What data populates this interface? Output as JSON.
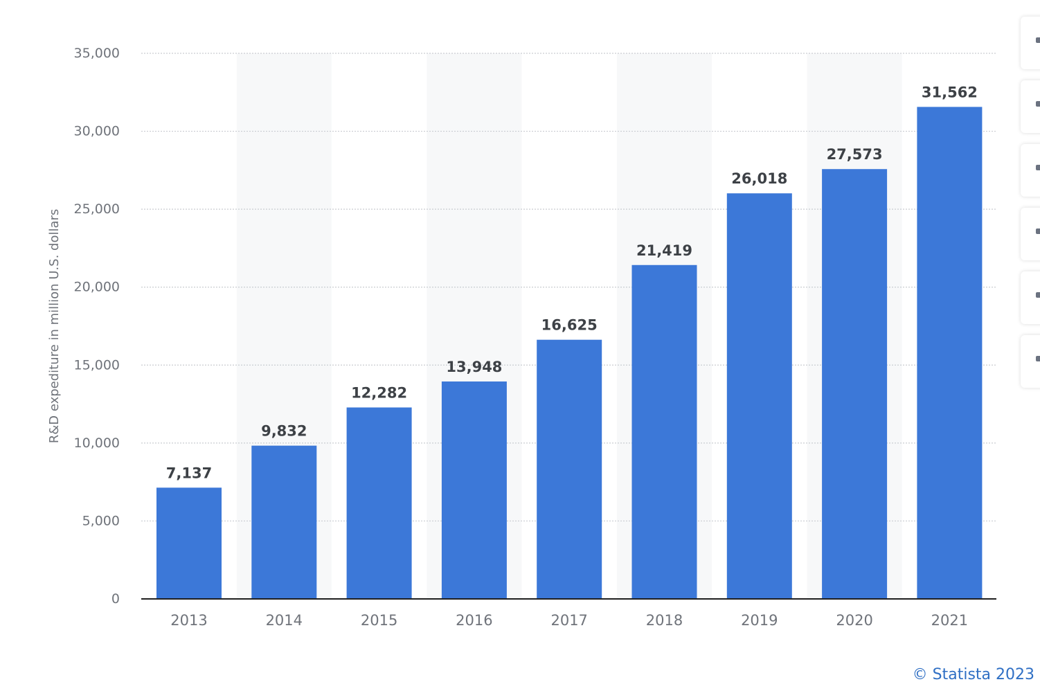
{
  "chart_data": {
    "type": "bar",
    "title": "",
    "xlabel": "",
    "ylabel": "R&D expediture in million U.S. dollars",
    "categories": [
      "2013",
      "2014",
      "2015",
      "2016",
      "2017",
      "2018",
      "2019",
      "2020",
      "2021"
    ],
    "values": [
      7137,
      9832,
      12282,
      13948,
      16625,
      21419,
      26018,
      27573,
      31562
    ],
    "value_labels": [
      "7,137",
      "9,832",
      "12,282",
      "13,948",
      "16,625",
      "21,419",
      "26,018",
      "27,573",
      "31,562"
    ],
    "ylim": [
      0,
      35000
    ],
    "yticks": [
      0,
      5000,
      10000,
      15000,
      20000,
      25000,
      30000,
      35000
    ],
    "ytick_labels": [
      "0",
      "5,000",
      "10,000",
      "15,000",
      "20,000",
      "25,000",
      "30,000",
      "35,000"
    ],
    "grid": true,
    "legend": "none",
    "colors": {
      "bar": "#3c78d8",
      "grid": "#c9ccd1",
      "axis": "#1f1f1f",
      "tick_text": "#6f737a",
      "value_text": "#3d4146",
      "band": "#f7f8f9"
    }
  },
  "credit": "© Statista 2023",
  "toolbar": {
    "icons": [
      "notification-icon",
      "favorite-icon",
      "download-icon",
      "settings-icon",
      "share-icon",
      "print-icon"
    ]
  }
}
